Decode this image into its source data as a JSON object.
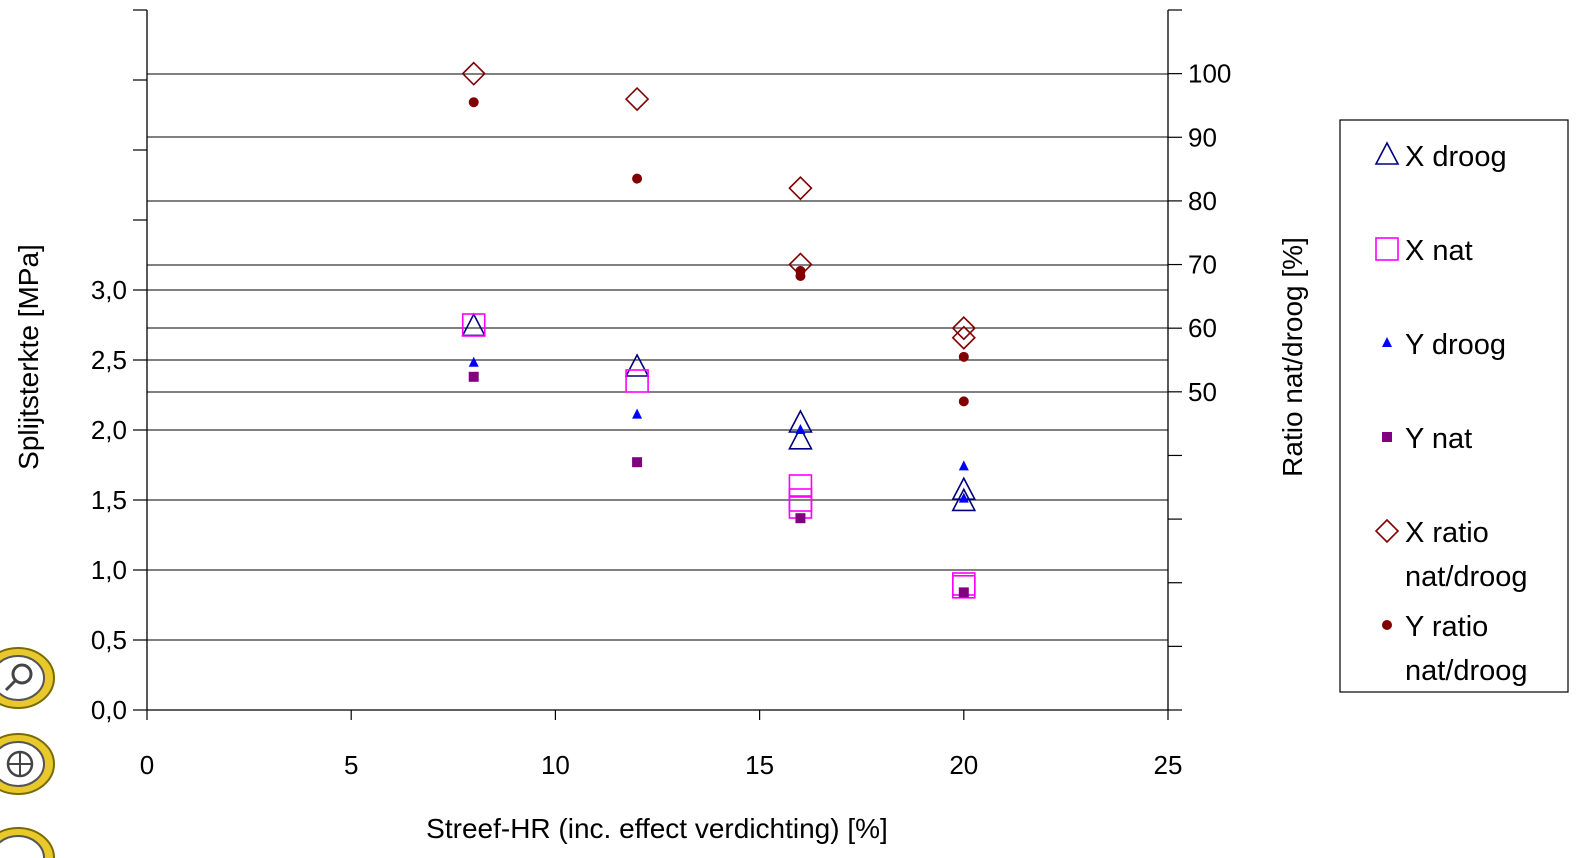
{
  "chart_data": {
    "type": "scatter",
    "xlabel": "Streef-HR (inc. effect verdichting) [%]",
    "ylabel": "Splijtsterkte [MPa]",
    "y2label": "Ratio nat/droog [%]",
    "xlim": [
      0,
      25
    ],
    "ylim": [
      0,
      5
    ],
    "y2lim": [
      0,
      110
    ],
    "x_ticks": [
      "0",
      "5",
      "10",
      "15",
      "20",
      "25"
    ],
    "x_tick_values": [
      0,
      5,
      10,
      15,
      20,
      25
    ],
    "y_ticks": [
      "0,0",
      "0,5",
      "1,0",
      "1,5",
      "2,0",
      "2,5",
      "3,0"
    ],
    "y_tick_values": [
      0,
      0.5,
      1.0,
      1.5,
      2.0,
      2.5,
      3.0
    ],
    "y2_ticks": [
      "50",
      "60",
      "70",
      "80",
      "90",
      "100"
    ],
    "y2_tick_values": [
      50,
      60,
      70,
      80,
      90,
      100
    ],
    "grid": true,
    "legend_position": "right",
    "series": [
      {
        "name": "X droog",
        "axis": "left",
        "marker": "triangle-open",
        "color": "#000080",
        "points": [
          [
            8,
            2.74
          ],
          [
            12,
            2.45
          ],
          [
            16,
            2.05
          ],
          [
            16,
            1.93
          ],
          [
            20,
            1.57
          ],
          [
            20,
            1.49
          ]
        ]
      },
      {
        "name": "X nat",
        "axis": "left",
        "marker": "square-open",
        "color": "#ff00ff",
        "points": [
          [
            8,
            2.75
          ],
          [
            12,
            2.35
          ],
          [
            16,
            1.6
          ],
          [
            16,
            1.5
          ],
          [
            16,
            1.45
          ],
          [
            20,
            0.9
          ],
          [
            20,
            0.88
          ]
        ]
      },
      {
        "name": "Y droog",
        "axis": "left",
        "marker": "triangle-filled",
        "color": "#0000ff",
        "points": [
          [
            8,
            2.48
          ],
          [
            12,
            2.11
          ],
          [
            16,
            2.0
          ],
          [
            20,
            1.74
          ],
          [
            20,
            1.51
          ]
        ]
      },
      {
        "name": "Y nat",
        "axis": "left",
        "marker": "square-filled",
        "color": "#800080",
        "points": [
          [
            8,
            2.38
          ],
          [
            12,
            1.77
          ],
          [
            16,
            1.37
          ],
          [
            20,
            0.84
          ]
        ]
      },
      {
        "name": "X ratio nat/droog",
        "axis": "right",
        "marker": "diamond-open",
        "color": "#800000",
        "points": [
          [
            8,
            100
          ],
          [
            12,
            96
          ],
          [
            16,
            82
          ],
          [
            16,
            70
          ],
          [
            20,
            60
          ],
          [
            20,
            58.5
          ]
        ]
      },
      {
        "name": "Y ratio nat/droog",
        "axis": "right",
        "marker": "circle-filled",
        "color": "#800000",
        "points": [
          [
            8,
            95.5
          ],
          [
            12,
            83.5
          ],
          [
            16,
            69
          ],
          [
            16,
            68.2
          ],
          [
            20,
            55.5
          ],
          [
            20,
            48.5
          ]
        ]
      }
    ],
    "legend": [
      {
        "line1": "X droog",
        "line2": ""
      },
      {
        "line1": "X nat",
        "line2": ""
      },
      {
        "line1": "Y droog",
        "line2": ""
      },
      {
        "line1": "Y nat",
        "line2": ""
      },
      {
        "line1": "X ratio",
        "line2": "nat/droog"
      },
      {
        "line1": "Y ratio",
        "line2": "nat/droog"
      }
    ]
  },
  "toolbar": {
    "icons": [
      "zoom-icon",
      "pan-icon",
      "tool-icon"
    ]
  }
}
